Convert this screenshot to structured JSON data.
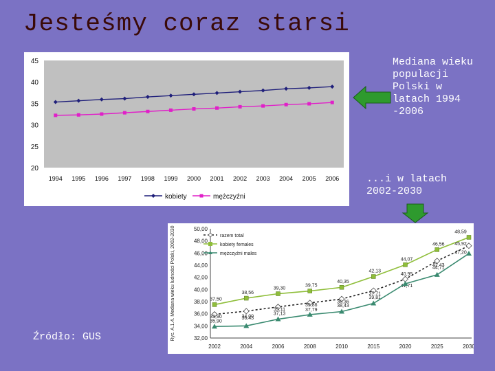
{
  "slide": {
    "title": "Jesteśmy coraz starsi",
    "description_1": "Mediana wieku populacji Polski w latach 1994 -2006",
    "description_2": "...i w latach 2002-2030",
    "source": "Źródło: GUS",
    "colors": {
      "background": "#7b72c4",
      "title": "#3a0a08",
      "arrow": "#2e9a2e"
    }
  },
  "chart_data": [
    {
      "type": "line",
      "title": "",
      "categories": [
        "1994",
        "1995",
        "1996",
        "1997",
        "1998",
        "1999",
        "2000",
        "2001",
        "2002",
        "2003",
        "2004",
        "2005",
        "2006"
      ],
      "ylim": [
        20,
        45
      ],
      "yticks": [
        "20",
        "25",
        "30",
        "35",
        "40",
        "45"
      ],
      "series": [
        {
          "name": "kobiety",
          "color": "#1f1f7a",
          "values": [
            35.3,
            35.6,
            35.9,
            36.1,
            36.5,
            36.8,
            37.1,
            37.4,
            37.7,
            38.0,
            38.4,
            38.6,
            38.9
          ]
        },
        {
          "name": "mężczyźni",
          "color": "#e020c8",
          "values": [
            32.2,
            32.3,
            32.5,
            32.8,
            33.1,
            33.4,
            33.7,
            33.9,
            34.2,
            34.4,
            34.7,
            34.9,
            35.2
          ]
        }
      ]
    },
    {
      "type": "line",
      "ylabel": "Ryc. A.1.4. Mediana wieku ludności Polski, 2002-2030",
      "categories": [
        "2002",
        "2004",
        "2006",
        "2008",
        "2010",
        "2015",
        "2020",
        "2025",
        "2030"
      ],
      "ylim": [
        32,
        50
      ],
      "yticks": [
        "32,00",
        "34,00",
        "36,00",
        "38,00",
        "40,00",
        "42,00",
        "44,00",
        "46,00",
        "48,00",
        "50,00"
      ],
      "series": [
        {
          "name": "razem total",
          "color": "#222222",
          "values": [
            35.9,
            36.43,
            37.13,
            37.79,
            38.43,
            39.81,
            41.71,
            44.71,
            47.2
          ],
          "labels": [
            "35,90",
            "36,43",
            "37,13",
            "37,79",
            "38,43",
            "39,81",
            "41,71",
            "44,71",
            "47,20"
          ]
        },
        {
          "name": "kobiety females",
          "color": "#8fbe3a",
          "values": [
            37.5,
            38.56,
            39.3,
            39.75,
            40.35,
            42.13,
            44.07,
            46.56,
            48.59
          ],
          "labels": [
            "37,50",
            "38,56",
            "39,30",
            "39,75",
            "40,35",
            "42,13",
            "44,07",
            "46,56",
            "48,59"
          ]
        },
        {
          "name": "mężczyźni males",
          "color": "#3a8a70",
          "values": [
            33.9,
            34.0,
            35.11,
            35.86,
            36.36,
            37.71,
            40.95,
            42.43,
            45.92
          ],
          "labels": [
            "33,90",
            "34,00",
            "35,11",
            "35,86",
            "36,36",
            "37,71",
            "40,95",
            "42,43",
            "45,92"
          ]
        }
      ]
    }
  ]
}
